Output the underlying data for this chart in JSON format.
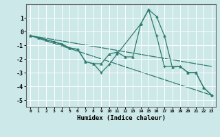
{
  "xlabel": "Humidex (Indice chaleur)",
  "bg_color": "#cce8e8",
  "line_color": "#2d7a6e",
  "grid_color": "#ffffff",
  "xlim": [
    -0.5,
    23.5
  ],
  "ylim": [
    -5.5,
    2.0
  ],
  "yticks": [
    1,
    0,
    -1,
    -2,
    -3,
    -4,
    -5
  ],
  "xticks": [
    0,
    1,
    2,
    3,
    4,
    5,
    6,
    7,
    8,
    9,
    10,
    11,
    12,
    13,
    14,
    15,
    16,
    17,
    18,
    19,
    20,
    21,
    22,
    23
  ],
  "series_triangle": {
    "x": [
      0,
      1,
      2,
      3,
      4,
      5,
      6,
      7,
      8,
      9,
      10,
      11,
      12,
      13,
      14,
      15,
      16,
      17,
      18,
      19,
      20,
      21,
      22,
      23
    ],
    "y": [
      -0.3,
      -0.45,
      -0.6,
      -0.75,
      -0.9,
      -1.2,
      -1.3,
      -2.2,
      -2.35,
      -2.35,
      -1.65,
      -1.5,
      -1.85,
      -1.85,
      0.55,
      1.6,
      1.1,
      -0.3,
      -2.6,
      -2.55,
      -3.0,
      -3.0,
      -4.1,
      -4.65
    ]
  },
  "series_plus": {
    "x": [
      0,
      3,
      5,
      6,
      7,
      8,
      9,
      10,
      11,
      14,
      15,
      16,
      17,
      19,
      20,
      21,
      22,
      23
    ],
    "y": [
      -0.3,
      -0.75,
      -1.2,
      -1.3,
      -2.2,
      -2.35,
      -3.0,
      -2.4,
      -1.65,
      0.55,
      1.6,
      -0.3,
      -2.55,
      -2.55,
      -3.0,
      -3.0,
      -4.1,
      -4.65
    ]
  },
  "line1": {
    "x": [
      0,
      23
    ],
    "y": [
      -0.3,
      -2.55
    ]
  },
  "line2": {
    "x": [
      0,
      23
    ],
    "y": [
      -0.3,
      -4.65
    ]
  }
}
